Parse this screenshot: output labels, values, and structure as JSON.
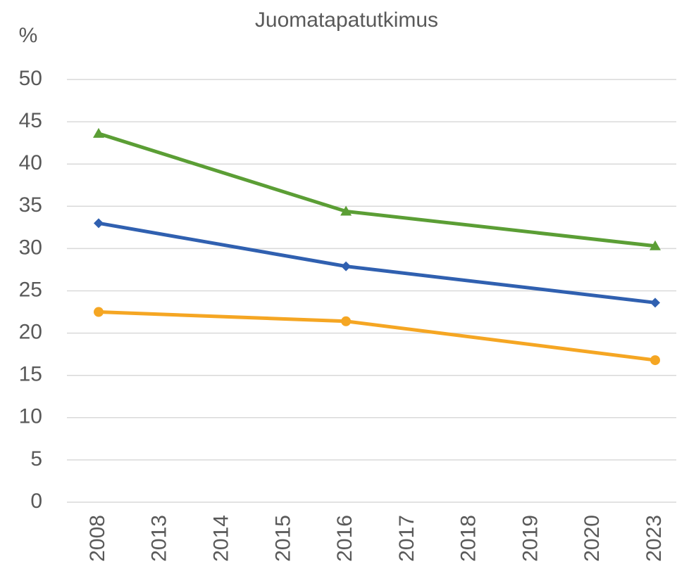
{
  "chart_data": {
    "type": "line",
    "title": "Juomatapatutkimus",
    "y_label": "%",
    "categories": [
      "2008",
      "2013",
      "2014",
      "2015",
      "2016",
      "2017",
      "2018",
      "2019",
      "2020",
      "2023"
    ],
    "series": [
      {
        "color": "#5b9e35",
        "marker": "triangle",
        "values": [
          43.6,
          null,
          null,
          null,
          34.4,
          null,
          null,
          null,
          null,
          30.3
        ]
      },
      {
        "color": "#3060b0",
        "marker": "diamond",
        "values": [
          33.0,
          null,
          null,
          null,
          27.9,
          null,
          null,
          null,
          null,
          23.6
        ]
      },
      {
        "color": "#f5a623",
        "marker": "circle",
        "values": [
          22.5,
          null,
          null,
          null,
          21.4,
          null,
          null,
          null,
          null,
          16.8
        ]
      }
    ],
    "span_gaps": true,
    "ylim": [
      0,
      50
    ],
    "yticks": [
      0,
      5,
      10,
      15,
      20,
      25,
      30,
      35,
      40,
      45,
      50
    ],
    "grid": true
  }
}
